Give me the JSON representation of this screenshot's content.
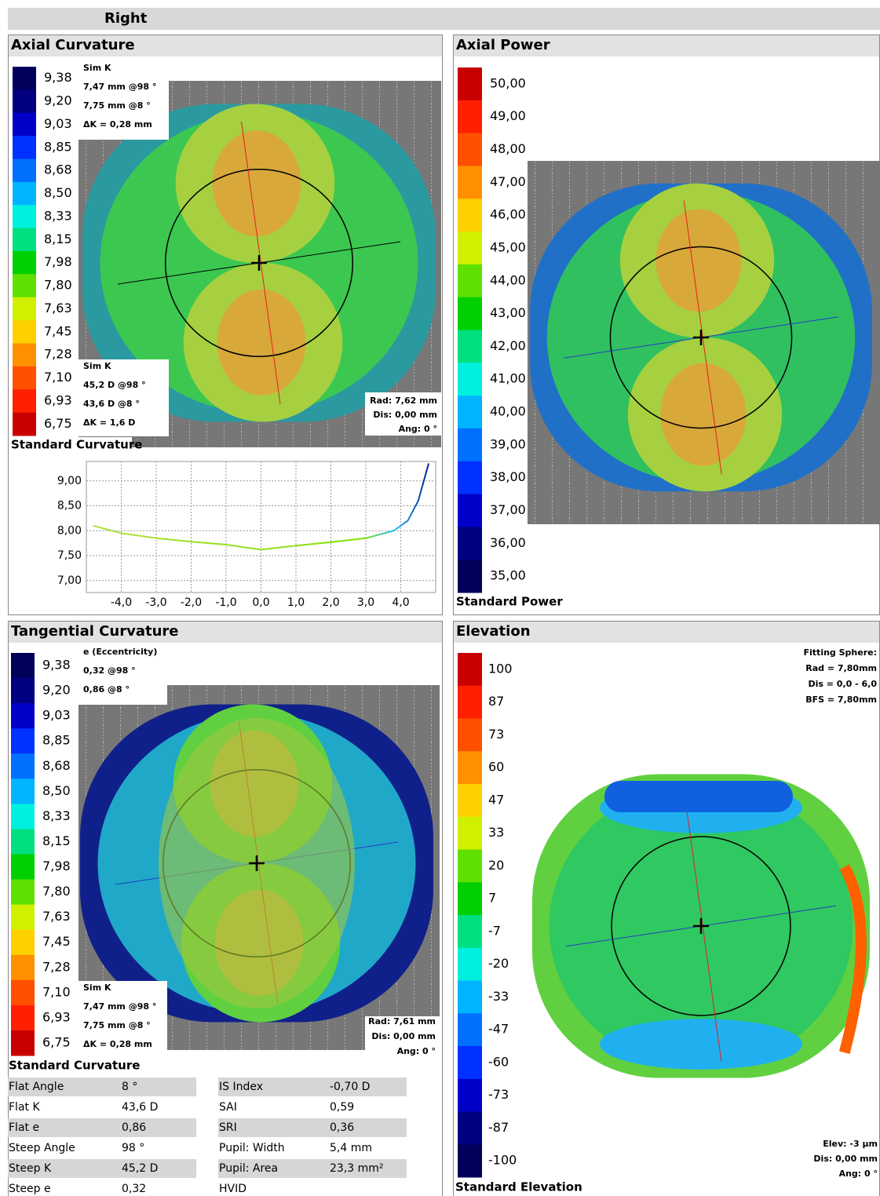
{
  "header": {
    "title": "Right"
  },
  "axial_curvature": {
    "title": "Axial Curvature",
    "scale": {
      "labels": [
        "9,38",
        "9,20",
        "9,03",
        "8,85",
        "8,68",
        "8,50",
        "8,33",
        "8,15",
        "7,98",
        "7,80",
        "7,63",
        "7,45",
        "7,28",
        "7,10",
        "6,93",
        "6,75"
      ],
      "colors": [
        "#00005a",
        "#000080",
        "#0000c8",
        "#0032ff",
        "#0070ff",
        "#00b4ff",
        "#00f0e0",
        "#00e080",
        "#00d000",
        "#60e000",
        "#d0f000",
        "#ffd000",
        "#ff9000",
        "#ff5000",
        "#ff2000",
        "#c80000"
      ]
    },
    "sim_k_top": {
      "title": "Sim K",
      "lines": [
        "7,47 mm @98 °",
        "7,75 mm @8 °",
        "ΔK = 0,28 mm"
      ]
    },
    "sim_k_bottom": {
      "title": "Sim K",
      "lines": [
        "45,2 D @98 °",
        "43,6 D @8 °",
        "ΔK = 1,6 D"
      ]
    },
    "info": [
      "Rad: 7,62 mm",
      "Dis: 0,00 mm",
      "Ang: 0 °"
    ],
    "footer": "Standard Curvature"
  },
  "profile": {
    "type": "line",
    "x": [
      -4.8,
      -4,
      -3,
      -2,
      -1,
      0,
      1,
      2,
      3,
      3.8,
      4.2,
      4.5,
      4.8
    ],
    "values": [
      8.1,
      7.95,
      7.85,
      7.78,
      7.72,
      7.62,
      7.7,
      7.77,
      7.85,
      8.0,
      8.2,
      8.6,
      9.35
    ],
    "xlim": [
      -5,
      5
    ],
    "ylim": [
      6.76,
      9.39
    ],
    "xticks": [
      {
        "value": -4,
        "label": "-4,0"
      },
      {
        "value": -3,
        "label": "-3,0"
      },
      {
        "value": -2,
        "label": "-2,0"
      },
      {
        "value": -1,
        "label": "-1,0"
      },
      {
        "value": 0,
        "label": "0,0"
      },
      {
        "value": 1,
        "label": "1,0"
      },
      {
        "value": 2,
        "label": "2,0"
      },
      {
        "value": 3,
        "label": "3,0"
      },
      {
        "value": 4,
        "label": "4,0"
      }
    ],
    "yticks": [
      {
        "value": 9,
        "label": "9,00"
      },
      {
        "value": 8.5,
        "label": "8,50"
      },
      {
        "value": 8,
        "label": "8,00"
      },
      {
        "value": 7.5,
        "label": "7,50"
      },
      {
        "value": 7,
        "label": "7,00"
      }
    ]
  },
  "axial_power": {
    "title": "Axial Power",
    "scale": {
      "labels": [
        "50,00",
        "49,00",
        "48,00",
        "47,00",
        "46,00",
        "45,00",
        "44,00",
        "43,00",
        "42,00",
        "41,00",
        "40,00",
        "39,00",
        "38,00",
        "37,00",
        "36,00",
        "35,00"
      ],
      "colors": [
        "#c80000",
        "#ff2000",
        "#ff5000",
        "#ff9000",
        "#ffd000",
        "#d0f000",
        "#60e000",
        "#00d000",
        "#00e080",
        "#00f0e0",
        "#00b4ff",
        "#0070ff",
        "#0032ff",
        "#0000c8",
        "#000080",
        "#00005a"
      ]
    },
    "footer": "Standard Power"
  },
  "tangential_curvature": {
    "title": "Tangential Curvature",
    "scale": {
      "labels": [
        "9,38",
        "9,20",
        "9,03",
        "8,85",
        "8,68",
        "8,50",
        "8,33",
        "8,15",
        "7,98",
        "7,80",
        "7,63",
        "7,45",
        "7,28",
        "7,10",
        "6,93",
        "6,75"
      ],
      "colors": [
        "#00005a",
        "#000080",
        "#0000c8",
        "#0032ff",
        "#0070ff",
        "#00b4ff",
        "#00f0e0",
        "#00e080",
        "#00d000",
        "#60e000",
        "#d0f000",
        "#ffd000",
        "#ff9000",
        "#ff5000",
        "#ff2000",
        "#c80000"
      ]
    },
    "eccentricity": {
      "title": "e (Eccentricity)",
      "lines": [
        "0,32 @98 °",
        "0,86 @8 °"
      ]
    },
    "sim_k": {
      "title": "Sim K",
      "lines": [
        "7,47 mm @98 °",
        "7,75 mm @8 °",
        "ΔK = 0,28 mm"
      ]
    },
    "info": [
      "Rad: 7,61 mm",
      "Dis: 0,00 mm",
      "Ang: 0 °"
    ],
    "footer": "Standard Curvature"
  },
  "elevation": {
    "title": "Elevation",
    "scale": {
      "labels": [
        "100",
        "87",
        "73",
        "60",
        "47",
        "33",
        "20",
        "7",
        "-7",
        "-20",
        "-33",
        "-47",
        "-60",
        "-73",
        "-87",
        "-100"
      ],
      "colors": [
        "#c80000",
        "#ff2000",
        "#ff5000",
        "#ff9000",
        "#ffd000",
        "#d0f000",
        "#60e000",
        "#00d000",
        "#00e080",
        "#00f0e0",
        "#00b4ff",
        "#0070ff",
        "#0032ff",
        "#0000c8",
        "#000080",
        "#00005a"
      ]
    },
    "fitting_sphere": [
      "Fitting Sphere:",
      "Rad = 7,80mm",
      "Dis = 0,0 - 6,0",
      "BFS = 7,80mm"
    ],
    "info": [
      "Elev: -3 µm",
      "Dis: 0,00 mm",
      "Ang: 0 °"
    ],
    "footer": "Standard Elevation"
  },
  "indices": {
    "left": [
      [
        "Flat Angle",
        "8 °"
      ],
      [
        "Flat K",
        "43,6 D"
      ],
      [
        "Flat e",
        "0,86"
      ],
      [
        "Steep Angle",
        "98 °"
      ],
      [
        "Steep K",
        "45,2 D"
      ],
      [
        "Steep e",
        "0,32"
      ]
    ],
    "right": [
      [
        "IS Index",
        "-0,70 D"
      ],
      [
        "SAI",
        "0,59"
      ],
      [
        "SRI",
        "0,36"
      ],
      [
        "Pupil: Width",
        "5,4 mm"
      ],
      [
        "Pupil: Area",
        "23,3 mm²"
      ],
      [
        "HVID"
      ]
    ]
  }
}
